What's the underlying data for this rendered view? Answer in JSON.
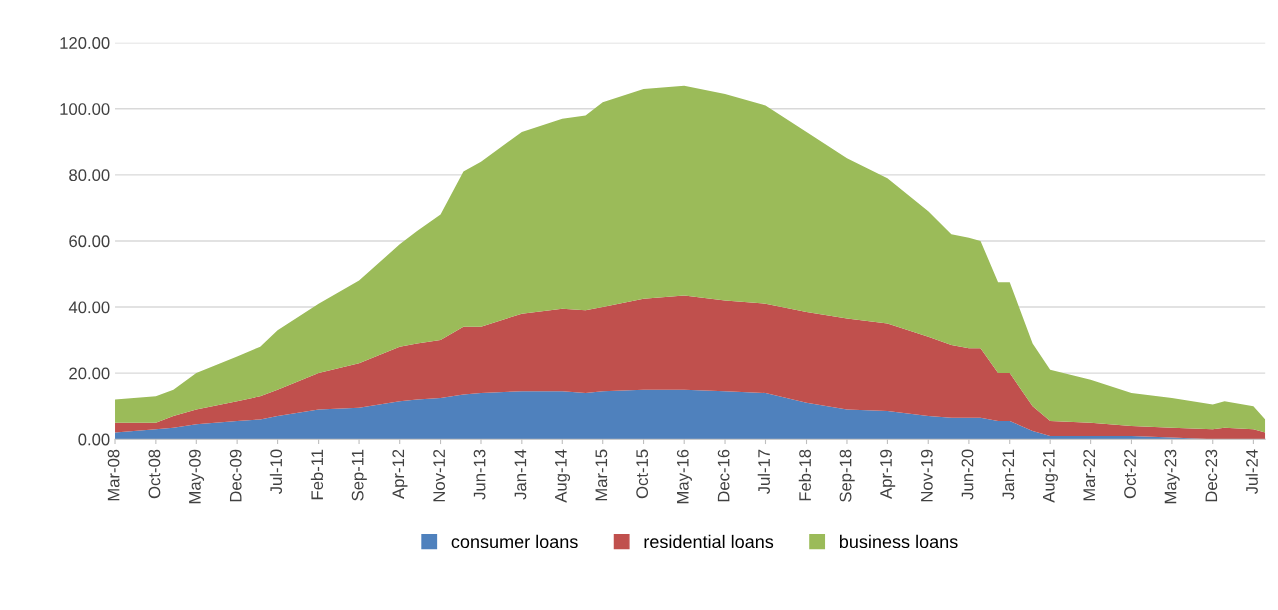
{
  "chart_data": {
    "type": "area",
    "stacked": true,
    "x": [
      "2008-03",
      "2008-10",
      "2009-01",
      "2009-05",
      "2009-12",
      "2010-04",
      "2010-07",
      "2011-02",
      "2011-09",
      "2012-04",
      "2012-07",
      "2012-11",
      "2013-03",
      "2013-06",
      "2014-01",
      "2014-08",
      "2014-12",
      "2015-03",
      "2015-10",
      "2016-05",
      "2016-12",
      "2017-07",
      "2018-02",
      "2018-09",
      "2019-04",
      "2019-11",
      "2020-03",
      "2020-06",
      "2020-08",
      "2020-11",
      "2021-01",
      "2021-05",
      "2021-08",
      "2022-03",
      "2022-10",
      "2023-05",
      "2023-12",
      "2024-02",
      "2024-07",
      "2024-09"
    ],
    "series": [
      {
        "name": "consumer loans",
        "color": "#4f81bd",
        "values": [
          2,
          3,
          3.5,
          4.5,
          5.5,
          6,
          7,
          9,
          9.5,
          11.5,
          12,
          12.5,
          13.5,
          14,
          14.5,
          14.5,
          14,
          14.5,
          15,
          15,
          14.5,
          14,
          11,
          9,
          8.5,
          7,
          6.5,
          6.5,
          6.5,
          5.5,
          5.5,
          2.5,
          1,
          1,
          1,
          0.5,
          0,
          0,
          0,
          0
        ]
      },
      {
        "name": "residential loans",
        "color": "#c0504d",
        "values": [
          3,
          2,
          3.5,
          4.5,
          6,
          7,
          8,
          11,
          13.5,
          16.5,
          17,
          17.5,
          20.5,
          20,
          23.5,
          25,
          25,
          25.5,
          27.5,
          28.5,
          27.5,
          27,
          27.5,
          27.5,
          26.5,
          24,
          22,
          21,
          21,
          14.5,
          14.5,
          7.5,
          4.5,
          4,
          3,
          3,
          3,
          3.5,
          3,
          2
        ]
      },
      {
        "name": "business loans",
        "color": "#9bbb59",
        "values": [
          7,
          8,
          8,
          11,
          13.5,
          15,
          18,
          21,
          25,
          31,
          34,
          38,
          47,
          50,
          55,
          57.5,
          59,
          62,
          63.5,
          63.5,
          62.5,
          60,
          54.5,
          48.5,
          44,
          38,
          33.5,
          33.5,
          32.5,
          27.5,
          27.5,
          19,
          15.5,
          13,
          10,
          9,
          7.5,
          8,
          7,
          4
        ]
      }
    ],
    "xlim": [
      "2008-03",
      "2024-09"
    ],
    "xticks": [
      {
        "value": "2008-03",
        "label": "Mar-08"
      },
      {
        "value": "2008-10",
        "label": "Oct-08"
      },
      {
        "value": "2009-05",
        "label": "May-09"
      },
      {
        "value": "2009-12",
        "label": "Dec-09"
      },
      {
        "value": "2010-07",
        "label": "Jul-10"
      },
      {
        "value": "2011-02",
        "label": "Feb-11"
      },
      {
        "value": "2011-09",
        "label": "Sep-11"
      },
      {
        "value": "2012-04",
        "label": "Apr-12"
      },
      {
        "value": "2012-11",
        "label": "Nov-12"
      },
      {
        "value": "2013-06",
        "label": "Jun-13"
      },
      {
        "value": "2014-01",
        "label": "Jan-14"
      },
      {
        "value": "2014-08",
        "label": "Aug-14"
      },
      {
        "value": "2015-03",
        "label": "Mar-15"
      },
      {
        "value": "2015-10",
        "label": "Oct-15"
      },
      {
        "value": "2016-05",
        "label": "May-16"
      },
      {
        "value": "2016-12",
        "label": "Dec-16"
      },
      {
        "value": "2017-07",
        "label": "Jul-17"
      },
      {
        "value": "2018-02",
        "label": "Feb-18"
      },
      {
        "value": "2018-09",
        "label": "Sep-18"
      },
      {
        "value": "2019-04",
        "label": "Apr-19"
      },
      {
        "value": "2019-11",
        "label": "Nov-19"
      },
      {
        "value": "2020-06",
        "label": "Jun-20"
      },
      {
        "value": "2021-01",
        "label": "Jan-21"
      },
      {
        "value": "2021-08",
        "label": "Aug-21"
      },
      {
        "value": "2022-03",
        "label": "Mar-22"
      },
      {
        "value": "2022-10",
        "label": "Oct-22"
      },
      {
        "value": "2023-05",
        "label": "May-23"
      },
      {
        "value": "2023-12",
        "label": "Dec-23"
      },
      {
        "value": "2024-07",
        "label": "Jul-24"
      }
    ],
    "ylim": [
      0,
      120
    ],
    "yticks": [
      {
        "value": 0,
        "label": "0.00"
      },
      {
        "value": 20,
        "label": "20.00"
      },
      {
        "value": 40,
        "label": "40.00"
      },
      {
        "value": 60,
        "label": "60.00"
      },
      {
        "value": 80,
        "label": "80.00"
      },
      {
        "value": 100,
        "label": "100.00"
      },
      {
        "value": 120,
        "label": "120.00"
      }
    ],
    "grid": "y",
    "legend": "bottom"
  }
}
